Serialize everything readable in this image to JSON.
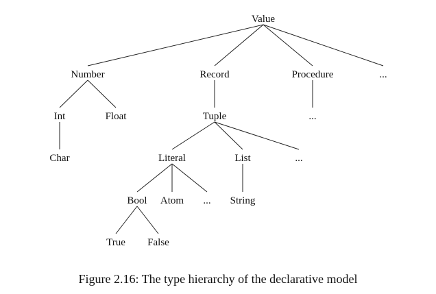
{
  "diagram": {
    "nodes": [
      {
        "id": "value",
        "label": "Value"
      },
      {
        "id": "number",
        "label": "Number"
      },
      {
        "id": "record",
        "label": "Record"
      },
      {
        "id": "procedure",
        "label": "Procedure"
      },
      {
        "id": "value-more",
        "label": "..."
      },
      {
        "id": "int",
        "label": "Int"
      },
      {
        "id": "float",
        "label": "Float"
      },
      {
        "id": "tuple",
        "label": "Tuple"
      },
      {
        "id": "procedure-more",
        "label": "..."
      },
      {
        "id": "char",
        "label": "Char"
      },
      {
        "id": "literal",
        "label": "Literal"
      },
      {
        "id": "list",
        "label": "List"
      },
      {
        "id": "tuple-more",
        "label": "..."
      },
      {
        "id": "bool",
        "label": "Bool"
      },
      {
        "id": "atom",
        "label": "Atom"
      },
      {
        "id": "literal-more",
        "label": "..."
      },
      {
        "id": "string",
        "label": "String"
      },
      {
        "id": "true",
        "label": "True"
      },
      {
        "id": "false",
        "label": "False"
      }
    ],
    "edges": [
      [
        "value",
        "number"
      ],
      [
        "value",
        "record"
      ],
      [
        "value",
        "procedure"
      ],
      [
        "value",
        "value-more"
      ],
      [
        "number",
        "int"
      ],
      [
        "number",
        "float"
      ],
      [
        "record",
        "tuple"
      ],
      [
        "procedure",
        "procedure-more"
      ],
      [
        "int",
        "char"
      ],
      [
        "tuple",
        "literal"
      ],
      [
        "tuple",
        "list"
      ],
      [
        "tuple",
        "tuple-more"
      ],
      [
        "literal",
        "bool"
      ],
      [
        "literal",
        "atom"
      ],
      [
        "literal",
        "literal-more"
      ],
      [
        "list",
        "string"
      ],
      [
        "bool",
        "true"
      ],
      [
        "bool",
        "false"
      ]
    ]
  },
  "caption": "Figure 2.16: The type hierarchy of the declarative model"
}
